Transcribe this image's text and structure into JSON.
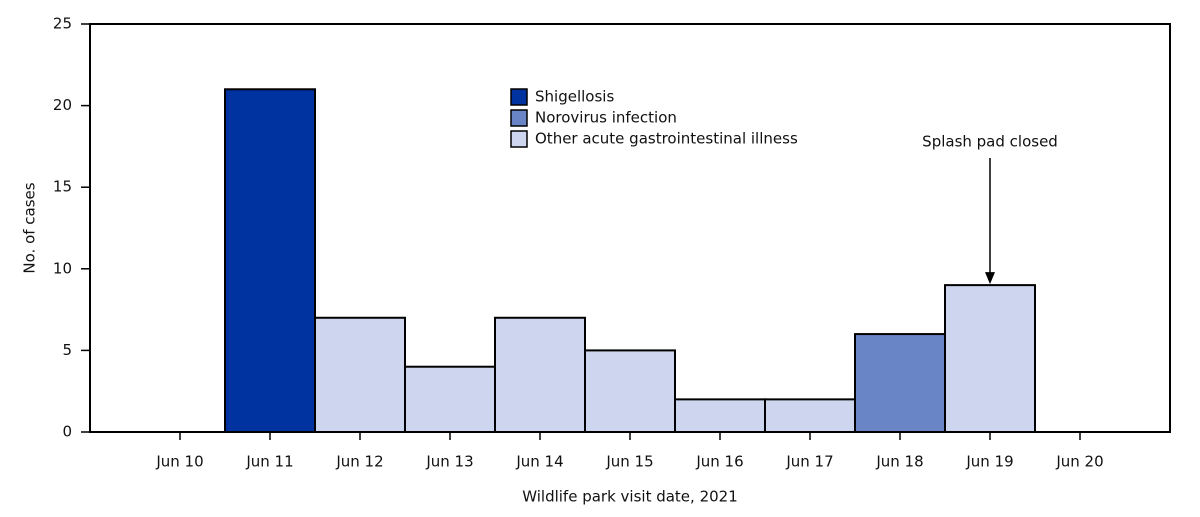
{
  "chart_data": {
    "type": "stacked_bar",
    "categories": [
      "Jun 10",
      "Jun 11",
      "Jun 12",
      "Jun 13",
      "Jun 14",
      "Jun 15",
      "Jun 16",
      "Jun 17",
      "Jun 18",
      "Jun 19",
      "Jun 20"
    ],
    "series": [
      {
        "name": "Shigellosis",
        "color": "#0033a0",
        "values": [
          0,
          21,
          0,
          0,
          0,
          0,
          0,
          0,
          0,
          0,
          0
        ]
      },
      {
        "name": "Norovirus infection",
        "color": "#6a85c6",
        "values": [
          0,
          0,
          0,
          0,
          0,
          0,
          0,
          0,
          6,
          0,
          0
        ]
      },
      {
        "name": "Other acute gastrointestinal illness",
        "color": "#cdd6ee",
        "values": [
          0,
          0,
          7,
          4,
          7,
          5,
          2,
          2,
          0,
          9,
          0
        ]
      }
    ],
    "ylim": [
      0,
      25
    ],
    "yticks": [
      0,
      5,
      10,
      15,
      20,
      25
    ],
    "y_label": "No. of cases",
    "x_label": "Wildlife park visit date, 2021",
    "annotation": {
      "text": "Splash pad closed",
      "category": "Jun 19"
    },
    "grid": false,
    "legend": "top"
  }
}
